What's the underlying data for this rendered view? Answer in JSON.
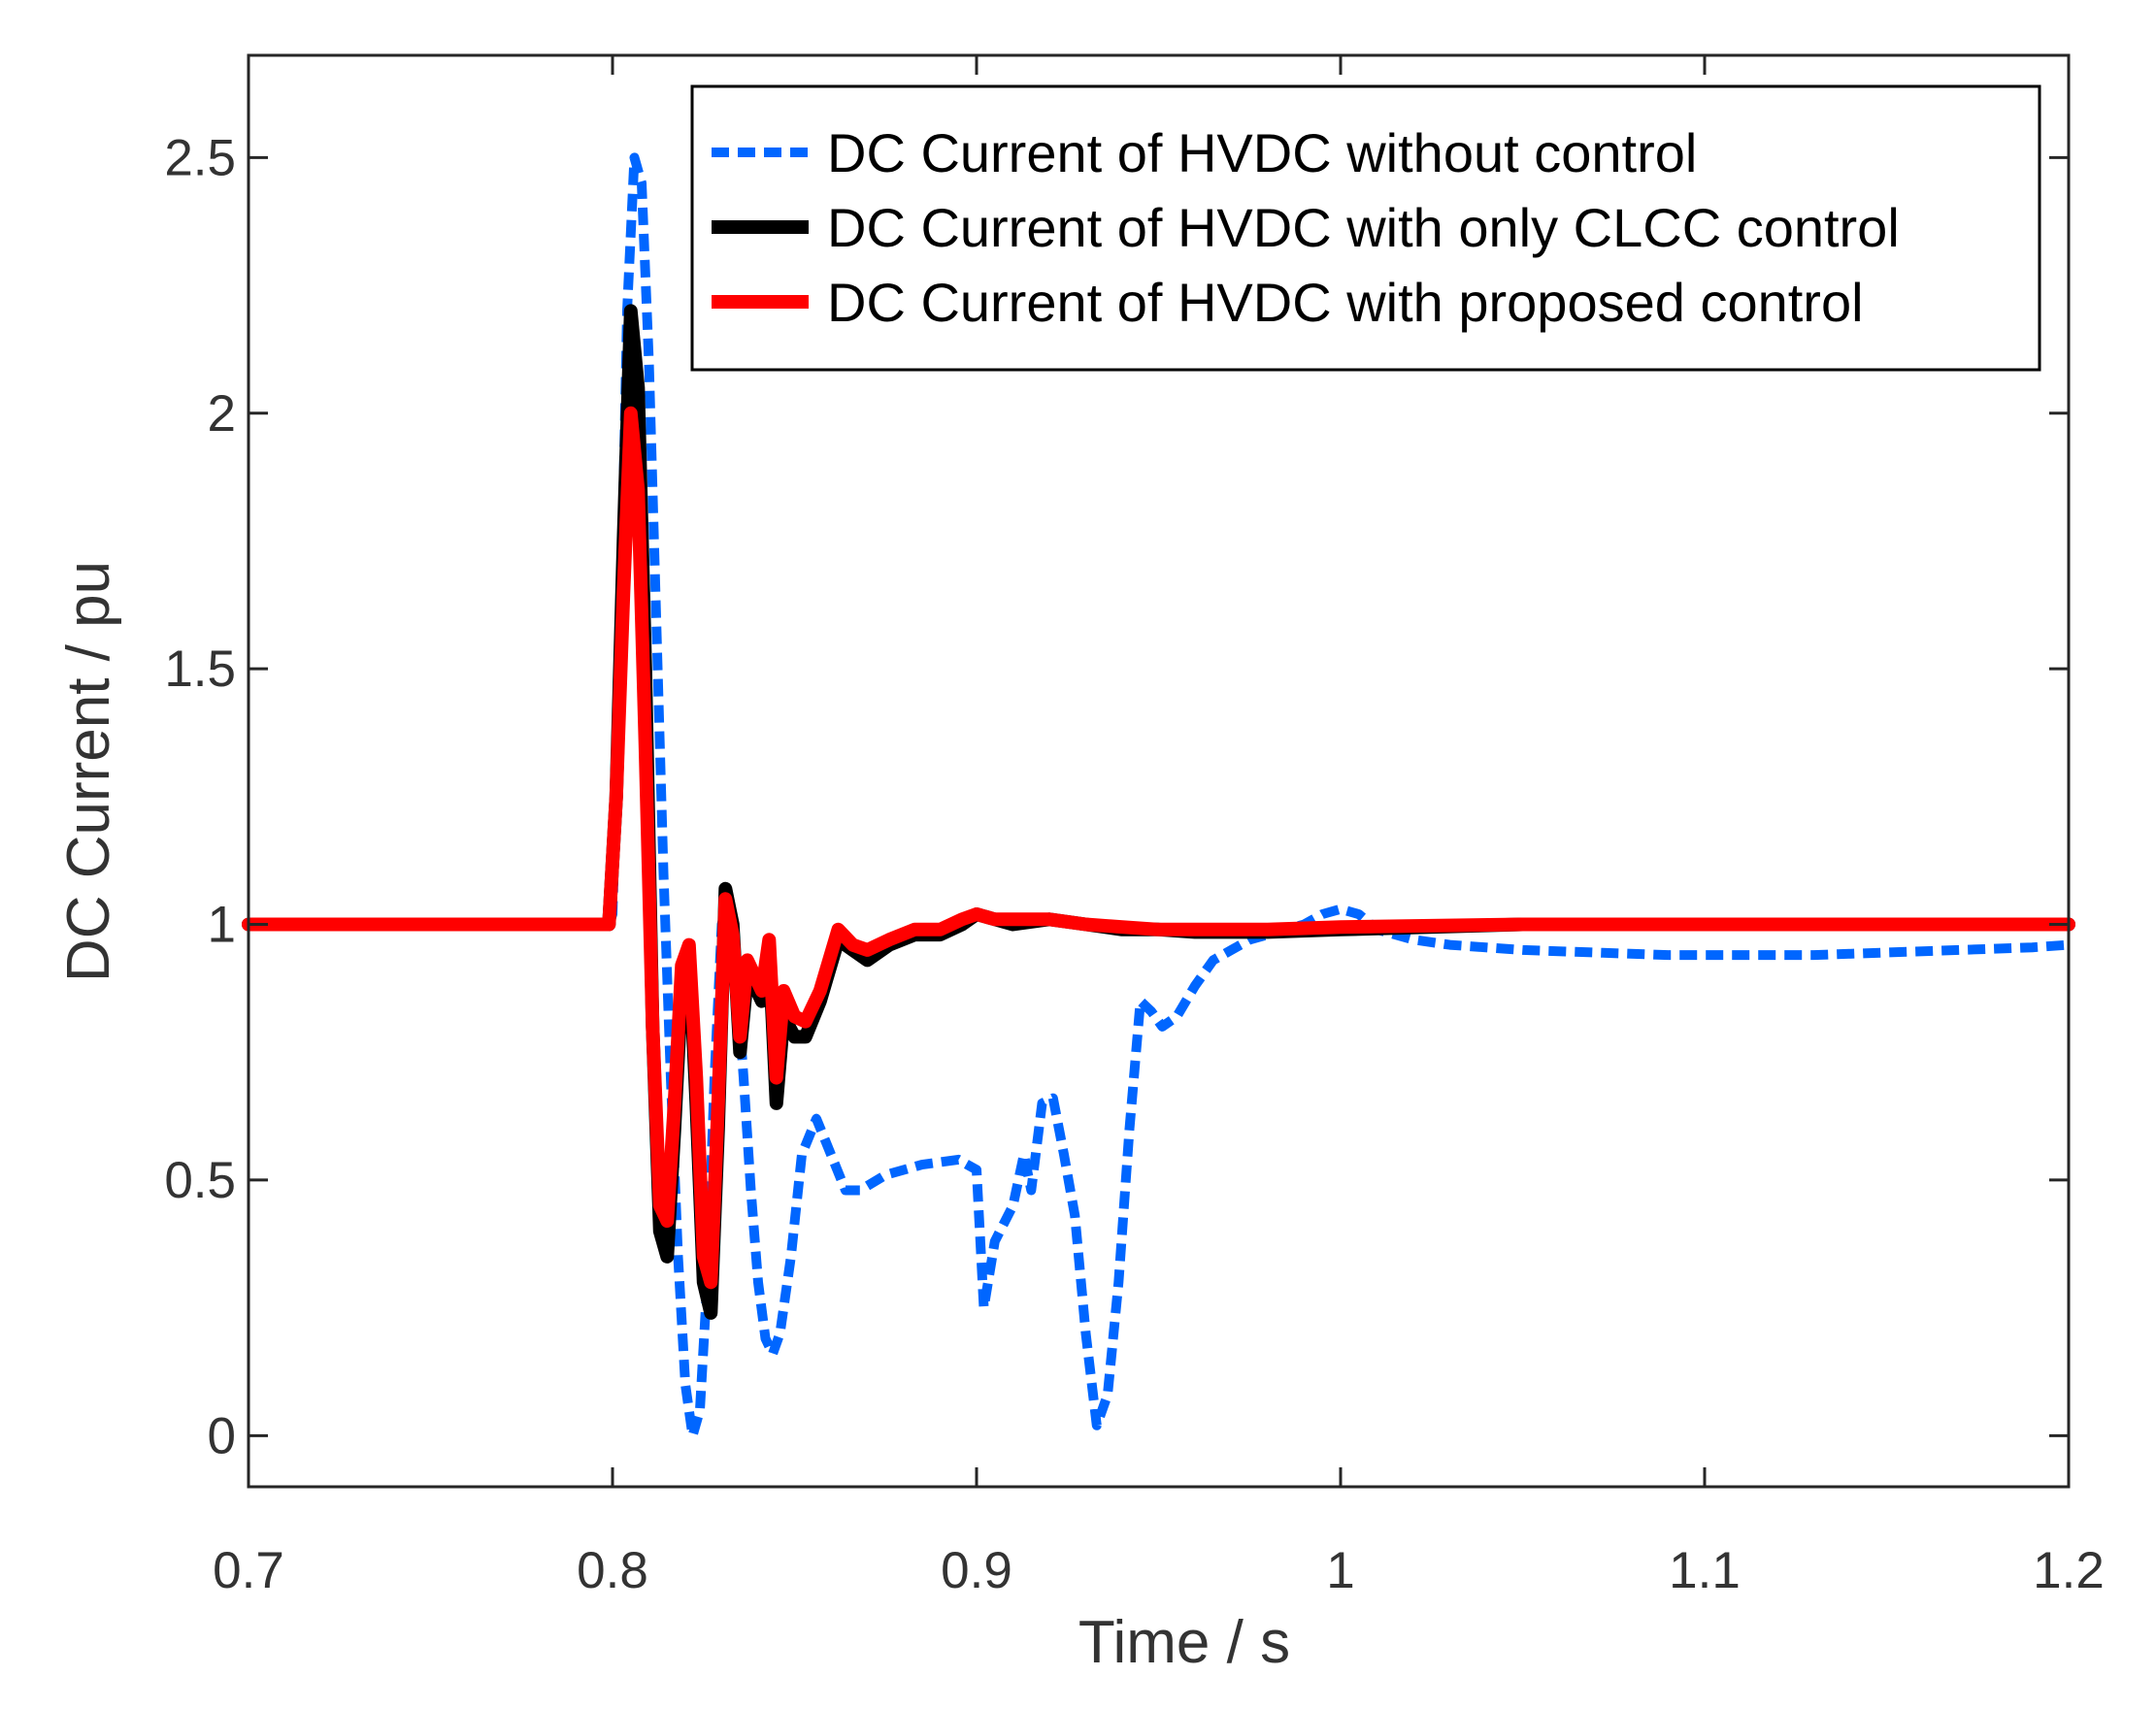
{
  "chart_data": {
    "type": "line",
    "title": "",
    "xlabel": "Time / s",
    "ylabel": "DC Current / pu",
    "xlim": [
      0.7,
      1.2
    ],
    "ylim": [
      -0.1,
      2.7
    ],
    "xticks": [
      0.7,
      0.8,
      0.9,
      1.0,
      1.1,
      1.2
    ],
    "xtick_labels": [
      "0.7",
      "0.8",
      "0.9",
      "1",
      "1.1",
      "1.2"
    ],
    "yticks": [
      0,
      0.5,
      1.0,
      1.5,
      2.0,
      2.5
    ],
    "ytick_labels": [
      "0",
      "0.5",
      "1",
      "1.5",
      "2",
      "2.5"
    ],
    "grid": false,
    "legend_position": "top-right",
    "series": [
      {
        "name": "DC Current of HVDC without control",
        "color": "#0066ff",
        "style": "dashed",
        "points": [
          [
            0.7,
            1.0
          ],
          [
            0.75,
            1.0
          ],
          [
            0.799,
            1.0
          ],
          [
            0.8,
            1.02
          ],
          [
            0.802,
            1.5
          ],
          [
            0.804,
            2.2
          ],
          [
            0.806,
            2.5
          ],
          [
            0.808,
            2.45
          ],
          [
            0.81,
            2.1
          ],
          [
            0.812,
            1.6
          ],
          [
            0.814,
            1.1
          ],
          [
            0.816,
            0.7
          ],
          [
            0.818,
            0.35
          ],
          [
            0.82,
            0.1
          ],
          [
            0.822,
            0.0
          ],
          [
            0.824,
            0.05
          ],
          [
            0.826,
            0.3
          ],
          [
            0.828,
            0.7
          ],
          [
            0.83,
            1.0
          ],
          [
            0.832,
            1.05
          ],
          [
            0.834,
            0.9
          ],
          [
            0.836,
            0.7
          ],
          [
            0.838,
            0.48
          ],
          [
            0.84,
            0.3
          ],
          [
            0.842,
            0.19
          ],
          [
            0.844,
            0.16
          ],
          [
            0.846,
            0.2
          ],
          [
            0.849,
            0.35
          ],
          [
            0.852,
            0.55
          ],
          [
            0.856,
            0.62
          ],
          [
            0.86,
            0.55
          ],
          [
            0.864,
            0.48
          ],
          [
            0.868,
            0.48
          ],
          [
            0.875,
            0.51
          ],
          [
            0.885,
            0.53
          ],
          [
            0.895,
            0.54
          ],
          [
            0.9,
            0.52
          ],
          [
            0.902,
            0.25
          ],
          [
            0.905,
            0.38
          ],
          [
            0.91,
            0.45
          ],
          [
            0.913,
            0.55
          ],
          [
            0.915,
            0.48
          ],
          [
            0.918,
            0.65
          ],
          [
            0.921,
            0.66
          ],
          [
            0.924,
            0.55
          ],
          [
            0.927,
            0.43
          ],
          [
            0.93,
            0.2
          ],
          [
            0.933,
            0.02
          ],
          [
            0.936,
            0.08
          ],
          [
            0.939,
            0.3
          ],
          [
            0.942,
            0.6
          ],
          [
            0.945,
            0.85
          ],
          [
            0.948,
            0.83
          ],
          [
            0.951,
            0.8
          ],
          [
            0.955,
            0.82
          ],
          [
            0.96,
            0.88
          ],
          [
            0.965,
            0.93
          ],
          [
            0.97,
            0.95
          ],
          [
            0.975,
            0.97
          ],
          [
            0.98,
            0.98
          ],
          [
            0.985,
            0.99
          ],
          [
            0.99,
            1.0
          ],
          [
            0.995,
            1.02
          ],
          [
            1.0,
            1.03
          ],
          [
            1.005,
            1.02
          ],
          [
            1.01,
            0.99
          ],
          [
            1.02,
            0.97
          ],
          [
            1.03,
            0.96
          ],
          [
            1.05,
            0.95
          ],
          [
            1.07,
            0.945
          ],
          [
            1.09,
            0.94
          ],
          [
            1.11,
            0.94
          ],
          [
            1.13,
            0.94
          ],
          [
            1.15,
            0.945
          ],
          [
            1.17,
            0.95
          ],
          [
            1.19,
            0.955
          ],
          [
            1.2,
            0.96
          ]
        ]
      },
      {
        "name": "DC Current of HVDC with only CLCC control",
        "color": "#000000",
        "style": "solid",
        "points": [
          [
            0.7,
            1.0
          ],
          [
            0.75,
            1.0
          ],
          [
            0.799,
            1.0
          ],
          [
            0.801,
            1.25
          ],
          [
            0.803,
            1.75
          ],
          [
            0.805,
            2.2
          ],
          [
            0.807,
            2.05
          ],
          [
            0.809,
            1.5
          ],
          [
            0.811,
            0.8
          ],
          [
            0.813,
            0.4
          ],
          [
            0.815,
            0.35
          ],
          [
            0.817,
            0.6
          ],
          [
            0.819,
            0.88
          ],
          [
            0.821,
            0.95
          ],
          [
            0.823,
            0.65
          ],
          [
            0.825,
            0.3
          ],
          [
            0.827,
            0.24
          ],
          [
            0.829,
            0.6
          ],
          [
            0.831,
            1.07
          ],
          [
            0.833,
            1.0
          ],
          [
            0.835,
            0.75
          ],
          [
            0.837,
            0.9
          ],
          [
            0.839,
            0.88
          ],
          [
            0.841,
            0.85
          ],
          [
            0.843,
            0.95
          ],
          [
            0.845,
            0.65
          ],
          [
            0.847,
            0.82
          ],
          [
            0.85,
            0.78
          ],
          [
            0.853,
            0.78
          ],
          [
            0.857,
            0.85
          ],
          [
            0.862,
            0.97
          ],
          [
            0.866,
            0.95
          ],
          [
            0.87,
            0.93
          ],
          [
            0.876,
            0.96
          ],
          [
            0.883,
            0.98
          ],
          [
            0.89,
            0.98
          ],
          [
            0.896,
            1.0
          ],
          [
            0.9,
            1.02
          ],
          [
            0.905,
            1.01
          ],
          [
            0.91,
            1.0
          ],
          [
            0.92,
            1.01
          ],
          [
            0.93,
            1.0
          ],
          [
            0.94,
            0.99
          ],
          [
            0.95,
            0.99
          ],
          [
            0.96,
            0.985
          ],
          [
            0.98,
            0.985
          ],
          [
            1.0,
            0.99
          ],
          [
            1.05,
            1.0
          ],
          [
            1.1,
            1.0
          ],
          [
            1.15,
            1.0
          ],
          [
            1.2,
            1.0
          ]
        ]
      },
      {
        "name": "DC Current of HVDC with proposed control",
        "color": "#ff0000",
        "style": "solid",
        "points": [
          [
            0.7,
            1.0
          ],
          [
            0.75,
            1.0
          ],
          [
            0.799,
            1.0
          ],
          [
            0.801,
            1.25
          ],
          [
            0.803,
            1.65
          ],
          [
            0.805,
            2.0
          ],
          [
            0.807,
            1.85
          ],
          [
            0.809,
            1.35
          ],
          [
            0.811,
            0.8
          ],
          [
            0.813,
            0.45
          ],
          [
            0.815,
            0.42
          ],
          [
            0.817,
            0.65
          ],
          [
            0.819,
            0.92
          ],
          [
            0.821,
            0.96
          ],
          [
            0.823,
            0.7
          ],
          [
            0.825,
            0.35
          ],
          [
            0.827,
            0.3
          ],
          [
            0.829,
            0.65
          ],
          [
            0.831,
            1.05
          ],
          [
            0.833,
            0.98
          ],
          [
            0.835,
            0.78
          ],
          [
            0.837,
            0.93
          ],
          [
            0.839,
            0.9
          ],
          [
            0.841,
            0.87
          ],
          [
            0.843,
            0.97
          ],
          [
            0.845,
            0.7
          ],
          [
            0.847,
            0.87
          ],
          [
            0.85,
            0.82
          ],
          [
            0.853,
            0.81
          ],
          [
            0.857,
            0.87
          ],
          [
            0.862,
            0.99
          ],
          [
            0.866,
            0.96
          ],
          [
            0.87,
            0.95
          ],
          [
            0.876,
            0.97
          ],
          [
            0.883,
            0.99
          ],
          [
            0.89,
            0.99
          ],
          [
            0.896,
            1.01
          ],
          [
            0.9,
            1.02
          ],
          [
            0.905,
            1.01
          ],
          [
            0.91,
            1.01
          ],
          [
            0.92,
            1.01
          ],
          [
            0.93,
            1.0
          ],
          [
            0.94,
            0.995
          ],
          [
            0.95,
            0.99
          ],
          [
            0.96,
            0.99
          ],
          [
            0.98,
            0.99
          ],
          [
            1.0,
            0.995
          ],
          [
            1.05,
            1.0
          ],
          [
            1.1,
            1.0
          ],
          [
            1.15,
            1.0
          ],
          [
            1.2,
            1.0
          ]
        ]
      }
    ]
  }
}
